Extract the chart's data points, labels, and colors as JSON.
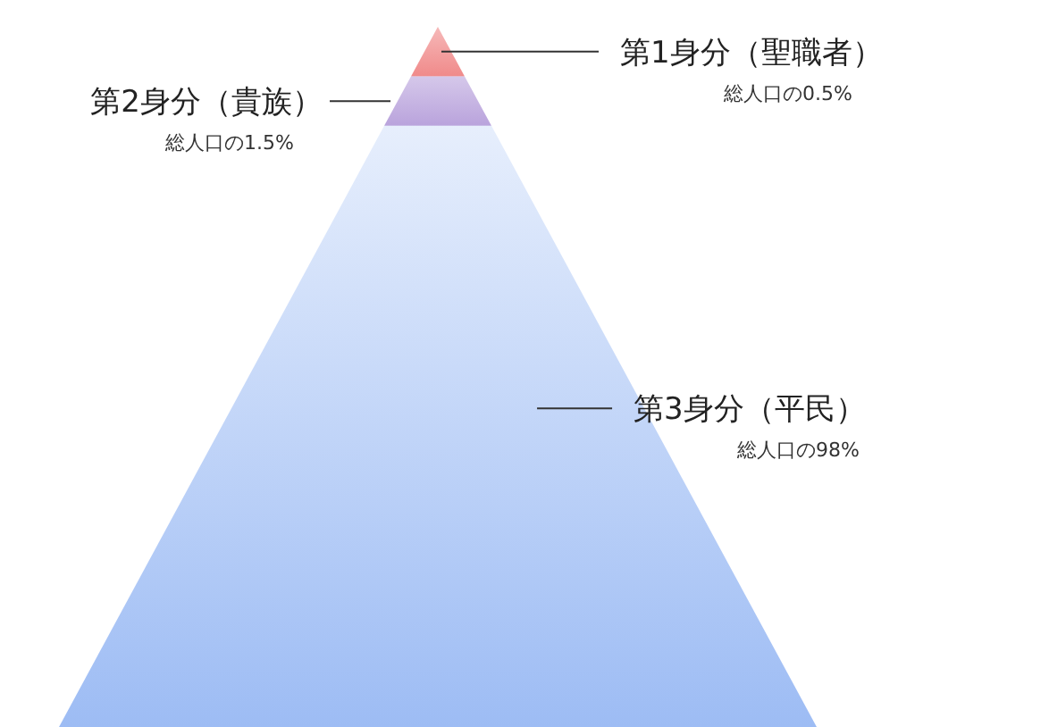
{
  "chart_data": {
    "type": "other",
    "categories": [
      "第1身分（聖職者）",
      "第2身分（貴族）",
      "第3身分（平民）"
    ],
    "values": [
      0.5,
      1.5,
      98
    ],
    "value_labels": [
      "総人口の0.5%",
      "総人口の1.5%",
      "総人口の98%"
    ],
    "colors": [
      "#f08a8a",
      "#b9a3dc",
      "#9dbcf4"
    ]
  }
}
